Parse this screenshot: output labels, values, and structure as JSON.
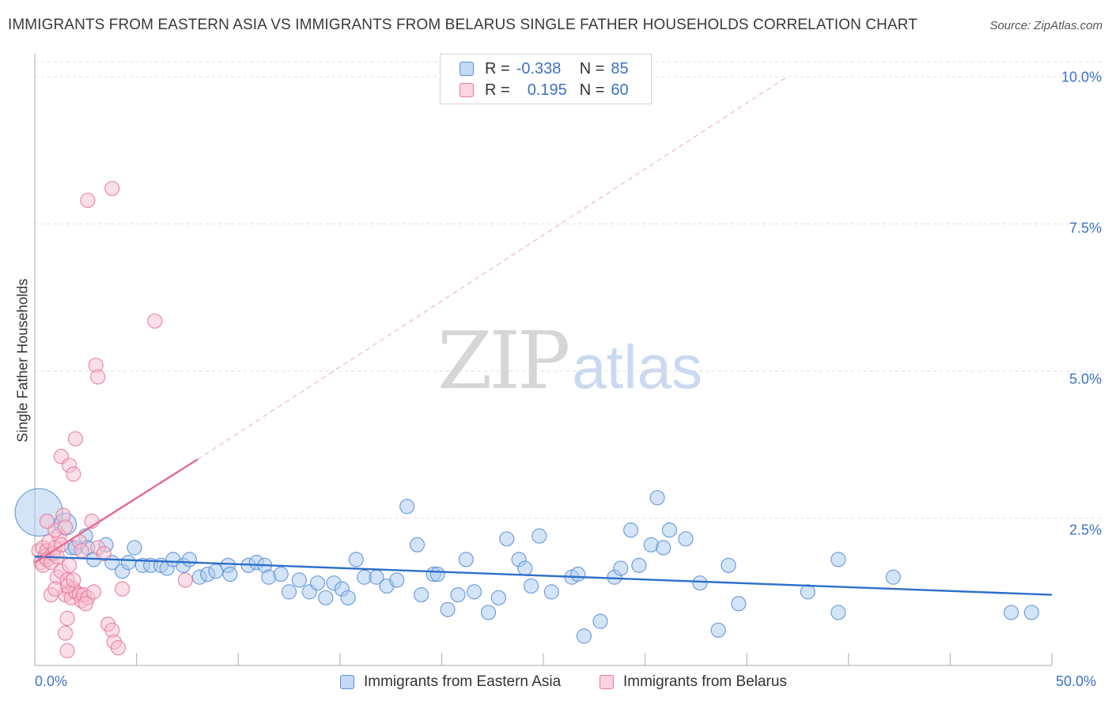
{
  "title": "IMMIGRANTS FROM EASTERN ASIA VS IMMIGRANTS FROM BELARUS SINGLE FATHER HOUSEHOLDS CORRELATION CHART",
  "source": "Source: ZipAtlas.com",
  "watermark": {
    "zip": "ZIP",
    "atlas": "atlas"
  },
  "legend": {
    "rows": [
      {
        "r_label": "R =",
        "r_value": "-0.338",
        "n_label": "N =",
        "n_value": "85"
      },
      {
        "r_label": "R =",
        "r_value": "0.195",
        "n_label": "N =",
        "n_value": "60"
      }
    ]
  },
  "colors": {
    "blue_fill": "#a9c9ef",
    "blue_stroke": "#5b8fd6",
    "blue_line": "#2d6fc9",
    "pink_fill": "#f6bfd0",
    "pink_stroke": "#e8799b",
    "pink_line": "#e46a8f",
    "axis_text": "#3c73c4",
    "grid": "#dddddd"
  },
  "chart_data": {
    "type": "scatter",
    "title": "IMMIGRANTS FROM EASTERN ASIA VS IMMIGRANTS FROM BELARUS SINGLE FATHER HOUSEHOLDS CORRELATION CHART",
    "xlabel": "",
    "ylabel": "Single Father Households",
    "xlim": [
      0,
      50
    ],
    "ylim": [
      0,
      10.5
    ],
    "x_tick_labels": [
      "0.0%",
      "50.0%"
    ],
    "y_ticks": [
      {
        "value": 2.5,
        "label": "2.5%"
      },
      {
        "value": 5.0,
        "label": "5.0%"
      },
      {
        "value": 7.5,
        "label": "7.5%"
      },
      {
        "value": 10.0,
        "label": "10.0%"
      }
    ],
    "grid": true,
    "series": [
      {
        "name": "Immigrants from Eastern Asia",
        "color": "blue",
        "R": -0.338,
        "N": 85,
        "trend": {
          "x0": 0,
          "y0": 1.85,
          "x1": 50,
          "y1": 1.2
        },
        "points": [
          [
            0.2,
            2.6,
            30
          ],
          [
            1.5,
            2.4,
            14
          ],
          [
            2.5,
            2.2,
            9
          ],
          [
            1.8,
            2.0,
            9
          ],
          [
            2.0,
            2.0,
            9
          ],
          [
            2.6,
            2.0,
            9
          ],
          [
            3.5,
            2.05,
            9
          ],
          [
            4.9,
            2.0,
            9
          ],
          [
            2.9,
            1.8,
            9
          ],
          [
            3.8,
            1.75,
            9
          ],
          [
            4.3,
            1.6,
            9
          ],
          [
            4.6,
            1.75,
            9
          ],
          [
            5.3,
            1.7,
            9
          ],
          [
            5.7,
            1.7,
            9
          ],
          [
            6.2,
            1.7,
            9
          ],
          [
            6.5,
            1.65,
            9
          ],
          [
            6.8,
            1.8,
            9
          ],
          [
            7.3,
            1.7,
            9
          ],
          [
            7.6,
            1.8,
            9
          ],
          [
            8.1,
            1.5,
            9
          ],
          [
            8.5,
            1.55,
            9
          ],
          [
            8.9,
            1.6,
            9
          ],
          [
            9.5,
            1.7,
            9
          ],
          [
            9.6,
            1.55,
            9
          ],
          [
            10.5,
            1.7,
            9
          ],
          [
            10.9,
            1.75,
            9
          ],
          [
            11.3,
            1.7,
            9
          ],
          [
            11.5,
            1.5,
            9
          ],
          [
            12.1,
            1.55,
            9
          ],
          [
            12.5,
            1.25,
            9
          ],
          [
            13.0,
            1.45,
            9
          ],
          [
            13.5,
            1.25,
            9
          ],
          [
            13.9,
            1.4,
            9
          ],
          [
            14.3,
            1.15,
            9
          ],
          [
            14.7,
            1.4,
            9
          ],
          [
            15.1,
            1.3,
            9
          ],
          [
            15.4,
            1.15,
            9
          ],
          [
            15.8,
            1.8,
            9
          ],
          [
            16.2,
            1.5,
            9
          ],
          [
            16.8,
            1.5,
            9
          ],
          [
            17.3,
            1.35,
            9
          ],
          [
            17.8,
            1.45,
            9
          ],
          [
            18.3,
            2.7,
            9
          ],
          [
            18.8,
            2.05,
            9
          ],
          [
            19.0,
            1.2,
            9
          ],
          [
            19.6,
            1.55,
            9
          ],
          [
            19.8,
            1.55,
            9
          ],
          [
            20.3,
            0.95,
            9
          ],
          [
            20.8,
            1.2,
            9
          ],
          [
            21.2,
            1.8,
            9
          ],
          [
            21.6,
            1.25,
            9
          ],
          [
            22.3,
            0.9,
            9
          ],
          [
            22.8,
            1.15,
            9
          ],
          [
            23.2,
            2.15,
            9
          ],
          [
            23.8,
            1.8,
            9
          ],
          [
            24.1,
            1.65,
            9
          ],
          [
            24.4,
            1.35,
            9
          ],
          [
            24.8,
            2.2,
            9
          ],
          [
            25.4,
            1.25,
            9
          ],
          [
            26.4,
            1.5,
            9
          ],
          [
            26.7,
            1.55,
            9
          ],
          [
            27.0,
            0.5,
            9
          ],
          [
            27.8,
            0.75,
            9
          ],
          [
            28.5,
            1.5,
            9
          ],
          [
            28.8,
            1.65,
            9
          ],
          [
            29.3,
            2.3,
            9
          ],
          [
            29.7,
            1.7,
            9
          ],
          [
            30.3,
            2.05,
            9
          ],
          [
            30.6,
            2.85,
            9
          ],
          [
            30.9,
            2.0,
            9
          ],
          [
            31.2,
            2.3,
            9
          ],
          [
            32.0,
            2.15,
            9
          ],
          [
            32.7,
            1.4,
            9
          ],
          [
            33.6,
            0.6,
            9
          ],
          [
            34.1,
            1.7,
            9
          ],
          [
            34.6,
            1.05,
            9
          ],
          [
            38.0,
            1.25,
            9
          ],
          [
            39.5,
            0.9,
            9
          ],
          [
            39.5,
            1.8,
            9
          ],
          [
            42.2,
            1.5,
            9
          ],
          [
            48.0,
            0.9,
            9
          ],
          [
            49.0,
            0.9,
            9
          ]
        ]
      },
      {
        "name": "Immigrants from Belarus",
        "color": "pink",
        "R": 0.195,
        "N": 60,
        "trend": {
          "x0": 0,
          "y0": 1.75,
          "x1": 8.0,
          "y1": 3.5
        },
        "trend_extension": {
          "x0": 8.0,
          "y0": 3.5,
          "x1": 37.0,
          "y1": 10.0
        },
        "points": [
          [
            0.2,
            1.95,
            9
          ],
          [
            0.3,
            1.75,
            9
          ],
          [
            0.4,
            2.0,
            9
          ],
          [
            0.4,
            1.7,
            9
          ],
          [
            0.5,
            1.85,
            9
          ],
          [
            0.6,
            1.95,
            9
          ],
          [
            0.6,
            1.8,
            9
          ],
          [
            0.7,
            2.1,
            9
          ],
          [
            0.8,
            1.75,
            9
          ],
          [
            0.9,
            1.9,
            9
          ],
          [
            1.0,
            2.0,
            9
          ],
          [
            1.1,
            1.85,
            9
          ],
          [
            1.2,
            2.2,
            9
          ],
          [
            1.3,
            2.05,
            9
          ],
          [
            1.0,
            2.3,
            9
          ],
          [
            0.6,
            2.45,
            9
          ],
          [
            1.4,
            2.55,
            9
          ],
          [
            1.5,
            2.35,
            9
          ],
          [
            1.1,
            1.5,
            9
          ],
          [
            1.3,
            1.6,
            9
          ],
          [
            1.6,
            1.45,
            9
          ],
          [
            1.7,
            1.7,
            9
          ],
          [
            1.9,
            1.3,
            9
          ],
          [
            1.7,
            1.25,
            9
          ],
          [
            1.5,
            1.2,
            9
          ],
          [
            1.8,
            1.15,
            9
          ],
          [
            2.0,
            1.25,
            9
          ],
          [
            2.2,
            1.2,
            9
          ],
          [
            1.6,
            1.35,
            9
          ],
          [
            1.9,
            1.45,
            9
          ],
          [
            2.3,
            1.1,
            9
          ],
          [
            2.4,
            1.2,
            9
          ],
          [
            2.6,
            1.15,
            9
          ],
          [
            2.5,
            1.05,
            9
          ],
          [
            2.9,
            1.25,
            9
          ],
          [
            2.8,
            2.45,
            9
          ],
          [
            3.1,
            2.0,
            9
          ],
          [
            1.6,
            0.8,
            9
          ],
          [
            1.5,
            0.55,
            9
          ],
          [
            1.6,
            0.25,
            9
          ],
          [
            3.6,
            0.7,
            9
          ],
          [
            3.8,
            0.6,
            9
          ],
          [
            3.9,
            0.4,
            9
          ],
          [
            4.1,
            0.3,
            9
          ],
          [
            1.3,
            3.55,
            9
          ],
          [
            1.7,
            3.4,
            9
          ],
          [
            1.9,
            3.25,
            9
          ],
          [
            2.0,
            3.85,
            9
          ],
          [
            2.2,
            2.1,
            9
          ],
          [
            2.3,
            1.95,
            9
          ],
          [
            2.6,
            7.9,
            9
          ],
          [
            3.0,
            5.1,
            9
          ],
          [
            3.1,
            4.9,
            9
          ],
          [
            3.4,
            1.9,
            9
          ],
          [
            3.8,
            8.1,
            9
          ],
          [
            4.3,
            1.3,
            9
          ],
          [
            5.9,
            5.85,
            9
          ],
          [
            7.4,
            1.45,
            9
          ],
          [
            0.8,
            1.2,
            9
          ],
          [
            1.0,
            1.3,
            9
          ]
        ]
      }
    ]
  },
  "bottom_legend": [
    "Immigrants from Eastern Asia",
    "Immigrants from Belarus"
  ]
}
